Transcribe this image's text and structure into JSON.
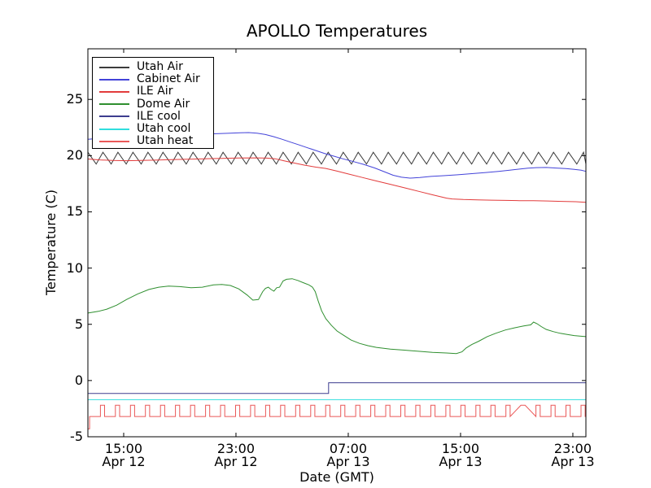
{
  "chart_data": {
    "type": "line",
    "title": "APOLLO Temperatures",
    "xlabel": "Date (GMT)",
    "ylabel": "Temperature (C)",
    "x_unit": "hours since Apr 12 00:00 GMT",
    "xlim": [
      12.45,
      47.93
    ],
    "ylim": [
      -5,
      29.5
    ],
    "grid": false,
    "legend_position": "upper left",
    "x_ticks": [
      {
        "value": 15,
        "time": "15:00",
        "date": "Apr 12"
      },
      {
        "value": 23,
        "time": "23:00",
        "date": "Apr 12"
      },
      {
        "value": 31,
        "time": "07:00",
        "date": "Apr 13"
      },
      {
        "value": 39,
        "time": "15:00",
        "date": "Apr 13"
      },
      {
        "value": 47,
        "time": "23:00",
        "date": "Apr 13"
      }
    ],
    "y_ticks": [
      {
        "value": -5,
        "label": "-5"
      },
      {
        "value": 0,
        "label": "0"
      },
      {
        "value": 5,
        "label": "5"
      },
      {
        "value": 10,
        "label": "10"
      },
      {
        "value": 15,
        "label": "15"
      },
      {
        "value": 20,
        "label": "20"
      },
      {
        "value": 25,
        "label": "25"
      }
    ],
    "series": [
      {
        "name": "Utah Air",
        "color": "#3c3c3c",
        "type": "sawtooth",
        "spec": {
          "t0": 12.45,
          "t1": 47.93,
          "period": 1.07,
          "low": 19.25,
          "high": 20.3,
          "rise_frac": 0.45
        }
      },
      {
        "name": "Cabinet Air",
        "color": "#4343d9",
        "type": "points",
        "points": [
          [
            12.45,
            21.45
          ],
          [
            13.5,
            21.55
          ],
          [
            15,
            21.65
          ],
          [
            16.5,
            21.72
          ],
          [
            18,
            21.8
          ],
          [
            19.5,
            21.87
          ],
          [
            21,
            21.92
          ],
          [
            21.8,
            21.96
          ],
          [
            22.6,
            22.0
          ],
          [
            23.3,
            22.03
          ],
          [
            23.9,
            22.05
          ],
          [
            24.5,
            22.0
          ],
          [
            25.1,
            21.88
          ],
          [
            25.7,
            21.68
          ],
          [
            26.3,
            21.45
          ],
          [
            26.9,
            21.2
          ],
          [
            27.5,
            20.95
          ],
          [
            28.1,
            20.7
          ],
          [
            28.7,
            20.45
          ],
          [
            29.3,
            20.2
          ],
          [
            29.9,
            19.98
          ],
          [
            30.6,
            19.72
          ],
          [
            31.3,
            19.5
          ],
          [
            32.1,
            19.22
          ],
          [
            32.9,
            18.9
          ],
          [
            33.6,
            18.55
          ],
          [
            34.2,
            18.25
          ],
          [
            34.8,
            18.08
          ],
          [
            35.4,
            18.0
          ],
          [
            36.1,
            18.05
          ],
          [
            36.9,
            18.15
          ],
          [
            37.8,
            18.22
          ],
          [
            38.8,
            18.3
          ],
          [
            39.8,
            18.4
          ],
          [
            40.8,
            18.5
          ],
          [
            41.7,
            18.6
          ],
          [
            42.5,
            18.7
          ],
          [
            43.2,
            18.8
          ],
          [
            43.8,
            18.88
          ],
          [
            44.4,
            18.93
          ],
          [
            45.1,
            18.95
          ],
          [
            45.8,
            18.9
          ],
          [
            46.5,
            18.85
          ],
          [
            47.1,
            18.78
          ],
          [
            47.6,
            18.7
          ],
          [
            47.93,
            18.6
          ]
        ]
      },
      {
        "name": "ILE Air",
        "color": "#e23b3b",
        "type": "points",
        "points": [
          [
            12.45,
            19.7
          ],
          [
            13.3,
            19.62
          ],
          [
            14.2,
            19.57
          ],
          [
            15.2,
            19.55
          ],
          [
            16.2,
            19.57
          ],
          [
            17.2,
            19.6
          ],
          [
            18.4,
            19.64
          ],
          [
            19.6,
            19.68
          ],
          [
            20.8,
            19.72
          ],
          [
            22,
            19.76
          ],
          [
            23.2,
            19.79
          ],
          [
            24.4,
            19.8
          ],
          [
            25.2,
            19.78
          ],
          [
            25.8,
            19.72
          ],
          [
            26.4,
            19.55
          ],
          [
            27.1,
            19.35
          ],
          [
            27.9,
            19.15
          ],
          [
            28.7,
            18.98
          ],
          [
            29.4,
            18.86
          ],
          [
            30.2,
            18.62
          ],
          [
            31,
            18.37
          ],
          [
            32,
            18.06
          ],
          [
            33,
            17.75
          ],
          [
            34,
            17.45
          ],
          [
            35,
            17.14
          ],
          [
            36,
            16.83
          ],
          [
            37,
            16.52
          ],
          [
            38,
            16.22
          ],
          [
            38.4,
            16.15
          ],
          [
            39.2,
            16.1
          ],
          [
            40.2,
            16.07
          ],
          [
            41.2,
            16.04
          ],
          [
            42.2,
            16.02
          ],
          [
            43.2,
            16.0
          ],
          [
            44.2,
            16.0
          ],
          [
            45.2,
            15.97
          ],
          [
            46.2,
            15.93
          ],
          [
            47.2,
            15.9
          ],
          [
            47.93,
            15.85
          ]
        ]
      },
      {
        "name": "Dome Air",
        "color": "#2f8f2f",
        "type": "points",
        "points": [
          [
            12.45,
            6.0
          ],
          [
            13.2,
            6.15
          ],
          [
            13.8,
            6.35
          ],
          [
            14.5,
            6.7
          ],
          [
            15.2,
            7.2
          ],
          [
            16.0,
            7.7
          ],
          [
            16.8,
            8.1
          ],
          [
            17.5,
            8.3
          ],
          [
            18.2,
            8.4
          ],
          [
            19.0,
            8.35
          ],
          [
            19.8,
            8.25
          ],
          [
            20.6,
            8.3
          ],
          [
            21.4,
            8.5
          ],
          [
            22.0,
            8.55
          ],
          [
            22.6,
            8.45
          ],
          [
            23.2,
            8.15
          ],
          [
            23.8,
            7.6
          ],
          [
            24.2,
            7.15
          ],
          [
            24.6,
            7.2
          ],
          [
            24.9,
            7.9
          ],
          [
            25.1,
            8.2
          ],
          [
            25.3,
            8.3
          ],
          [
            25.5,
            8.1
          ],
          [
            25.7,
            7.95
          ],
          [
            25.9,
            8.25
          ],
          [
            26.1,
            8.3
          ],
          [
            26.35,
            8.85
          ],
          [
            26.6,
            9.0
          ],
          [
            27.0,
            9.05
          ],
          [
            27.4,
            8.9
          ],
          [
            27.8,
            8.7
          ],
          [
            28.2,
            8.5
          ],
          [
            28.45,
            8.3
          ],
          [
            28.65,
            7.9
          ],
          [
            28.85,
            7.1
          ],
          [
            29.1,
            6.2
          ],
          [
            29.4,
            5.5
          ],
          [
            29.8,
            4.9
          ],
          [
            30.2,
            4.4
          ],
          [
            30.7,
            4.0
          ],
          [
            31.2,
            3.6
          ],
          [
            31.8,
            3.3
          ],
          [
            32.4,
            3.1
          ],
          [
            33.0,
            2.95
          ],
          [
            34.0,
            2.8
          ],
          [
            35.0,
            2.7
          ],
          [
            36.0,
            2.6
          ],
          [
            37.0,
            2.5
          ],
          [
            38.0,
            2.45
          ],
          [
            38.7,
            2.4
          ],
          [
            39.1,
            2.55
          ],
          [
            39.4,
            2.9
          ],
          [
            39.8,
            3.2
          ],
          [
            40.3,
            3.5
          ],
          [
            40.9,
            3.9
          ],
          [
            41.5,
            4.2
          ],
          [
            42.2,
            4.5
          ],
          [
            42.9,
            4.7
          ],
          [
            43.5,
            4.85
          ],
          [
            44.0,
            4.95
          ],
          [
            44.2,
            5.2
          ],
          [
            44.45,
            5.05
          ],
          [
            44.75,
            4.8
          ],
          [
            45.1,
            4.55
          ],
          [
            45.6,
            4.35
          ],
          [
            46.1,
            4.2
          ],
          [
            46.6,
            4.1
          ],
          [
            47.1,
            4.0
          ],
          [
            47.5,
            3.95
          ],
          [
            47.93,
            3.9
          ]
        ]
      },
      {
        "name": "ILE cool",
        "color": "#3d3d8f",
        "type": "points",
        "points": [
          [
            12.45,
            -1.15
          ],
          [
            29.6,
            -1.15
          ],
          [
            29.6,
            -0.2
          ],
          [
            47.93,
            -0.2
          ]
        ]
      },
      {
        "name": "Utah cool",
        "color": "#30dede",
        "type": "points",
        "points": [
          [
            12.45,
            -1.7
          ],
          [
            47.93,
            -1.7
          ]
        ]
      },
      {
        "name": "Utah heat",
        "color": "#ea5858",
        "type": "pulse",
        "spec": {
          "t0": 12.45,
          "t1": 47.93,
          "period": 1.07,
          "high_frac": 0.28,
          "low": -3.2,
          "high": -2.2,
          "start_value": -4.3,
          "long_high": [
            42.95,
            44.3
          ]
        }
      }
    ]
  }
}
